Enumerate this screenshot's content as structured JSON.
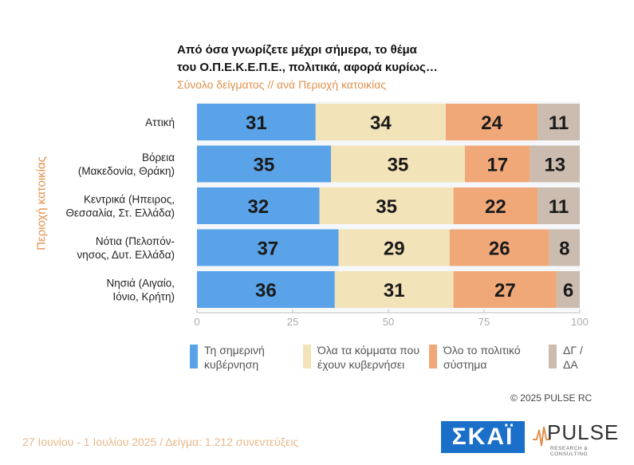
{
  "title_line1": "Από όσα γνωρίζετε μέχρι σήμερα, το θέμα",
  "title_line2": "του  Ο.Π.Ε.Κ.Ε.Π.Ε.,  πολιτικά, αφορά κυρίως…",
  "subtitle": "Σύνολο δείγματος // ανά Περιοχή κατοικίας",
  "y_axis_label": "Περιοχή κατοικίας",
  "colors": {
    "kyvernisi": "#5aa3e8",
    "ola_kommata": "#f3e3b9",
    "olo_systima": "#f0a878",
    "dg_da": "#cbbcaf"
  },
  "chart_data": {
    "type": "bar",
    "orientation": "horizontal",
    "stacked": true,
    "categories": [
      [
        "Αττική"
      ],
      [
        "Βόρεια",
        "(Μακεδονία, Θράκη)"
      ],
      [
        "Κεντρικά (Ηπειρος,",
        "Θεσσαλία, Στ. Ελλάδα)"
      ],
      [
        "Νότια (Πελοπόν-",
        "νησος, Δυτ. Ελλάδα)"
      ],
      [
        "Νησιά (Αιγαίο,",
        "Ιόνιο, Κρήτη)"
      ]
    ],
    "series": [
      {
        "name": "Τη σημερινή κυβέρνηση",
        "values": [
          31,
          35,
          32,
          37,
          36
        ]
      },
      {
        "name": "Όλα τα κόμματα που έχουν κυβερνήσει",
        "values": [
          34,
          35,
          35,
          29,
          31
        ]
      },
      {
        "name": "Όλο το πολιτικό σύστημα",
        "values": [
          24,
          17,
          22,
          26,
          27
        ]
      },
      {
        "name": "ΔΓ / ΔΑ",
        "values": [
          11,
          13,
          11,
          8,
          6
        ]
      }
    ],
    "xlim": [
      0,
      100
    ],
    "xticks": [
      0,
      25,
      50,
      75,
      100
    ],
    "grid": false,
    "legend_position": "bottom"
  },
  "legend": [
    {
      "line1": "Τη σημερινή",
      "line2": "κυβέρνηση"
    },
    {
      "line1": "Όλα τα κόμματα που",
      "line2": "έχουν κυβερνήσει"
    },
    {
      "line1": "Όλο το πολιτικό",
      "line2": "σύστημα"
    },
    {
      "line1": "ΔΓ /",
      "line2": "ΔΑ"
    }
  ],
  "copyright": "©  2025  PULSE RC",
  "footer": "27 Ιουνίου - 1 Ιουλίου 2025  /  Δείγμα:  1.212 συνεντεύξεις",
  "logo_skai": "ΣΚΑΪ",
  "logo_pulse": "PULSE",
  "logo_pulse_tagline": "RESEARCH & CONSULTING"
}
